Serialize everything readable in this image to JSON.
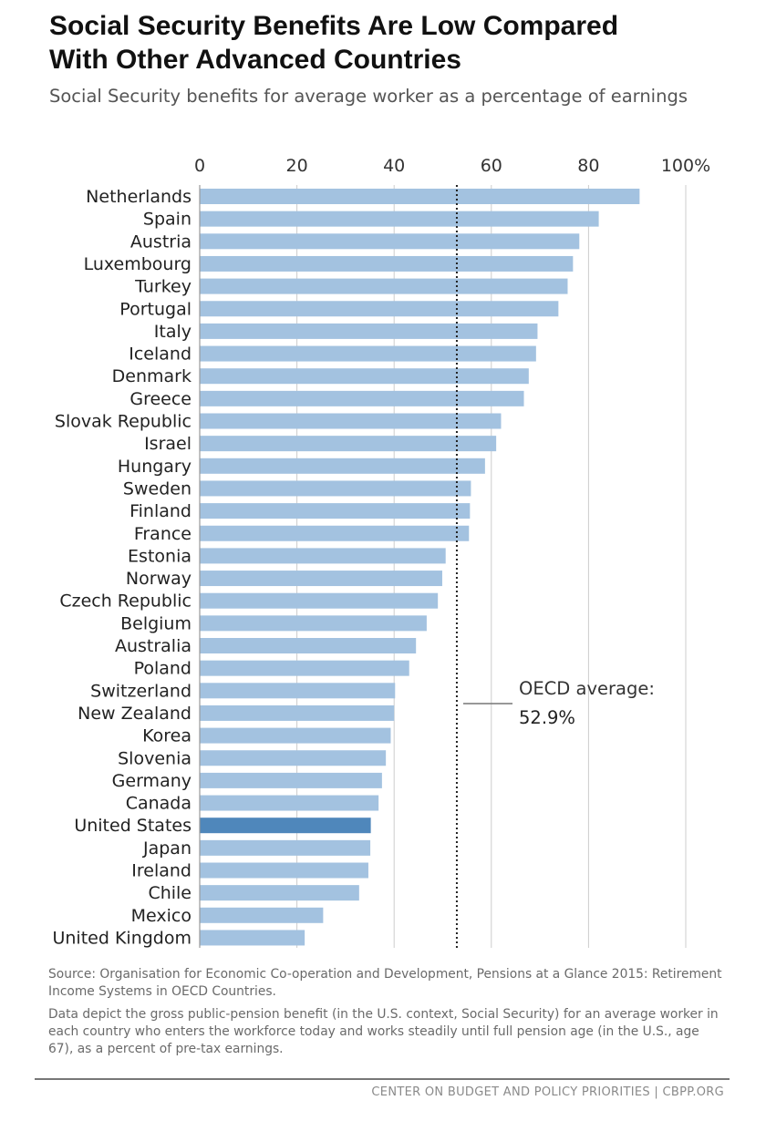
{
  "title_line1": "Social Security Benefits Are Low Compared",
  "title_line2": "With Other Advanced Countries",
  "subtitle": "Social Security benefits for average worker as a percentage of earnings",
  "annotation": {
    "label": "OECD average:",
    "value": "52.9%"
  },
  "source_note": "Source: Organisation for Economic Co-operation and Development, Pensions at a Glance 2015: Retirement Income Systems in OECD Countries.",
  "data_note": "Data depict the gross public-pension benefit (in the U.S. context, Social Security) for an average worker in each country who enters the workforce today and works steadily until full pension age (in the U.S., age 67), as a percent of pre-tax earnings.",
  "footer": "CENTER ON BUDGET AND POLICY PRIORITIES | CBPP.ORG",
  "colors": {
    "bar": "#a3c2e0",
    "highlight": "#4f87bb",
    "grid": "#cccccc",
    "reference_line": "#222222"
  },
  "chart_data": {
    "type": "bar",
    "orientation": "horizontal",
    "title": "Social Security Benefits Are Low Compared With Other Advanced Countries",
    "subtitle": "Social Security benefits for average worker as a percentage of earnings",
    "xlim": [
      0,
      100
    ],
    "x_ticks": [
      "0",
      "20",
      "40",
      "60",
      "80",
      "100%"
    ],
    "x_tick_values": [
      0,
      20,
      40,
      60,
      80,
      100
    ],
    "grid": true,
    "reference_line": {
      "value": 52.9,
      "label": "OECD average:",
      "value_label": "52.9%"
    },
    "highlight": "United States",
    "categories": [
      "Netherlands",
      "Spain",
      "Austria",
      "Luxembourg",
      "Turkey",
      "Portugal",
      "Italy",
      "Iceland",
      "Denmark",
      "Greece",
      "Slovak Republic",
      "Israel",
      "Hungary",
      "Sweden",
      "Finland",
      "France",
      "Estonia",
      "Norway",
      "Czech Republic",
      "Belgium",
      "Australia",
      "Poland",
      "Switzerland",
      "New Zealand",
      "Korea",
      "Slovenia",
      "Germany",
      "Canada",
      "United States",
      "Japan",
      "Ireland",
      "Chile",
      "Mexico",
      "United Kingdom"
    ],
    "values": [
      90.5,
      82.1,
      78.1,
      76.8,
      75.7,
      73.8,
      69.5,
      69.2,
      67.7,
      66.7,
      62.0,
      61.0,
      58.7,
      55.8,
      55.6,
      55.4,
      50.6,
      49.9,
      49.0,
      46.7,
      44.5,
      43.1,
      40.2,
      40.0,
      39.3,
      38.3,
      37.5,
      36.8,
      35.2,
      35.1,
      34.7,
      32.8,
      25.4,
      21.6
    ]
  }
}
